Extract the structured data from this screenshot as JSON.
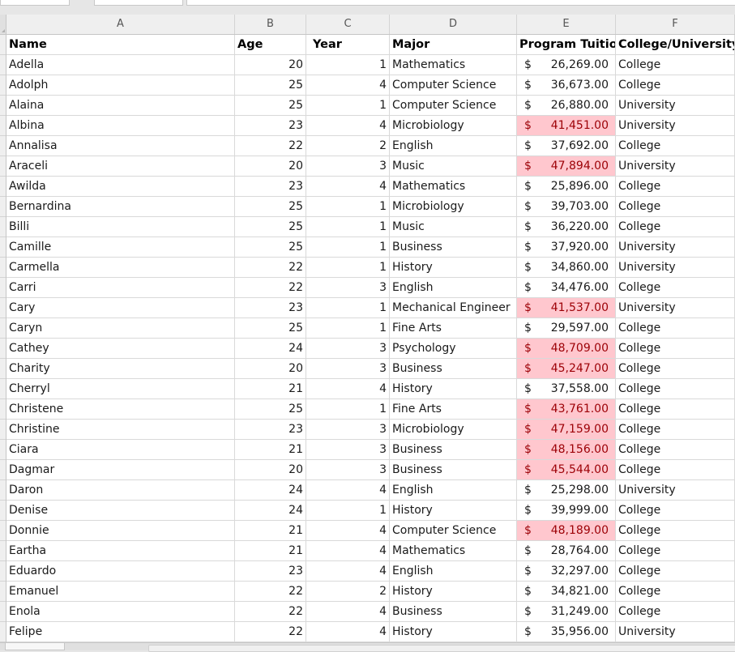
{
  "columns": [
    "A",
    "B",
    "C",
    "D",
    "E",
    "F"
  ],
  "header": {
    "name": "Name",
    "age": "Age",
    "year": "Year",
    "major": "Major",
    "tuition": "Program Tuition",
    "college": "College/University"
  },
  "currency_symbol": "$",
  "highlight_color": "#ffc7ce",
  "rows": [
    {
      "name": "Adella",
      "age": "20",
      "year": "1",
      "major": "Mathematics",
      "tuition": "26,269.00",
      "college": "College",
      "highlight": false
    },
    {
      "name": "Adolph",
      "age": "25",
      "year": "4",
      "major": "Computer Science",
      "tuition": "36,673.00",
      "college": "College",
      "highlight": false
    },
    {
      "name": "Alaina",
      "age": "25",
      "year": "1",
      "major": "Computer Science",
      "tuition": "26,880.00",
      "college": "University",
      "highlight": false
    },
    {
      "name": "Albina",
      "age": "23",
      "year": "4",
      "major": "Microbiology",
      "tuition": "41,451.00",
      "college": "University",
      "highlight": true
    },
    {
      "name": "Annalisa",
      "age": "22",
      "year": "2",
      "major": "English",
      "tuition": "37,692.00",
      "college": "College",
      "highlight": false
    },
    {
      "name": "Araceli",
      "age": "20",
      "year": "3",
      "major": "Music",
      "tuition": "47,894.00",
      "college": "University",
      "highlight": true
    },
    {
      "name": "Awilda",
      "age": "23",
      "year": "4",
      "major": "Mathematics",
      "tuition": "25,896.00",
      "college": "College",
      "highlight": false
    },
    {
      "name": "Bernardina",
      "age": "25",
      "year": "1",
      "major": "Microbiology",
      "tuition": "39,703.00",
      "college": "College",
      "highlight": false
    },
    {
      "name": "Billi",
      "age": "25",
      "year": "1",
      "major": "Music",
      "tuition": "36,220.00",
      "college": "College",
      "highlight": false
    },
    {
      "name": "Camille",
      "age": "25",
      "year": "1",
      "major": "Business",
      "tuition": "37,920.00",
      "college": "University",
      "highlight": false
    },
    {
      "name": "Carmella",
      "age": "22",
      "year": "1",
      "major": "History",
      "tuition": "34,860.00",
      "college": "University",
      "highlight": false
    },
    {
      "name": "Carri",
      "age": "22",
      "year": "3",
      "major": "English",
      "tuition": "34,476.00",
      "college": "College",
      "highlight": false
    },
    {
      "name": "Cary",
      "age": "23",
      "year": "1",
      "major": "Mechanical Engineer",
      "tuition": "41,537.00",
      "college": "University",
      "highlight": true
    },
    {
      "name": "Caryn",
      "age": "25",
      "year": "1",
      "major": "Fine Arts",
      "tuition": "29,597.00",
      "college": "College",
      "highlight": false
    },
    {
      "name": "Cathey",
      "age": "24",
      "year": "3",
      "major": "Psychology",
      "tuition": "48,709.00",
      "college": "College",
      "highlight": true
    },
    {
      "name": "Charity",
      "age": "20",
      "year": "3",
      "major": "Business",
      "tuition": "45,247.00",
      "college": "College",
      "highlight": true
    },
    {
      "name": "Cherryl",
      "age": "21",
      "year": "4",
      "major": "History",
      "tuition": "37,558.00",
      "college": "College",
      "highlight": false
    },
    {
      "name": "Christene",
      "age": "25",
      "year": "1",
      "major": "Fine Arts",
      "tuition": "43,761.00",
      "college": "College",
      "highlight": true
    },
    {
      "name": "Christine",
      "age": "23",
      "year": "3",
      "major": "Microbiology",
      "tuition": "47,159.00",
      "college": "College",
      "highlight": true
    },
    {
      "name": "Ciara",
      "age": "21",
      "year": "3",
      "major": "Business",
      "tuition": "48,156.00",
      "college": "College",
      "highlight": true
    },
    {
      "name": "Dagmar",
      "age": "20",
      "year": "3",
      "major": "Business",
      "tuition": "45,544.00",
      "college": "College",
      "highlight": true
    },
    {
      "name": "Daron",
      "age": "24",
      "year": "4",
      "major": "English",
      "tuition": "25,298.00",
      "college": "University",
      "highlight": false
    },
    {
      "name": "Denise",
      "age": "24",
      "year": "1",
      "major": "History",
      "tuition": "39,999.00",
      "college": "College",
      "highlight": false
    },
    {
      "name": "Donnie",
      "age": "21",
      "year": "4",
      "major": "Computer Science",
      "tuition": "48,189.00",
      "college": "College",
      "highlight": true
    },
    {
      "name": "Eartha",
      "age": "21",
      "year": "4",
      "major": "Mathematics",
      "tuition": "28,764.00",
      "college": "College",
      "highlight": false
    },
    {
      "name": "Eduardo",
      "age": "23",
      "year": "4",
      "major": "English",
      "tuition": "32,297.00",
      "college": "College",
      "highlight": false
    },
    {
      "name": "Emanuel",
      "age": "22",
      "year": "2",
      "major": "History",
      "tuition": "34,821.00",
      "college": "College",
      "highlight": false
    },
    {
      "name": "Enola",
      "age": "22",
      "year": "4",
      "major": "Business",
      "tuition": "31,249.00",
      "college": "College",
      "highlight": false
    },
    {
      "name": "Felipe",
      "age": "22",
      "year": "4",
      "major": "History",
      "tuition": "35,956.00",
      "college": "University",
      "highlight": false
    }
  ]
}
